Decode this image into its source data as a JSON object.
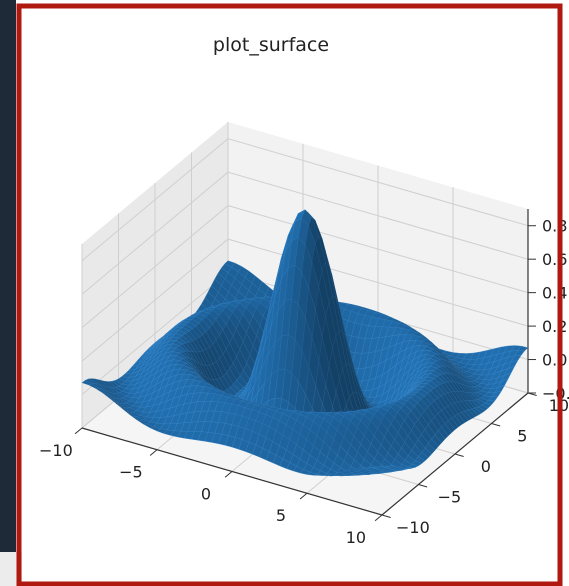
{
  "chart_data": {
    "type": "surface",
    "title": "plot_surface",
    "function": "sin(R)/R",
    "xlabel": "",
    "ylabel": "",
    "zlabel": "",
    "xlim": [
      -10,
      10
    ],
    "ylim": [
      -10,
      10
    ],
    "zlim": [
      -0.2,
      0.9
    ],
    "x_ticks": [
      -10,
      -5,
      0,
      5,
      10
    ],
    "y_ticks": [
      -10,
      -5,
      0,
      5,
      10
    ],
    "z_ticks": [
      -0.2,
      0.0,
      0.2,
      0.4,
      0.6,
      0.8
    ],
    "x_tick_labels": [
      "−10",
      "−5",
      "0",
      "5",
      "10"
    ],
    "y_tick_labels": [
      "−10",
      "−5",
      "0",
      "5",
      "10"
    ],
    "z_tick_labels": [
      "−0.2",
      "0.0",
      "0.2",
      "0.4",
      "0.6",
      "0.8"
    ],
    "grid": true,
    "surface_color": "#1f67a3"
  },
  "colors": {
    "frame_red": "#b0190f",
    "left_panel": "#1e2a38",
    "pane_left": "#e9e9e9",
    "pane_right": "#f2f2f2",
    "pane_floor": "#f5f5f5",
    "grid": "#cfcfcf"
  }
}
